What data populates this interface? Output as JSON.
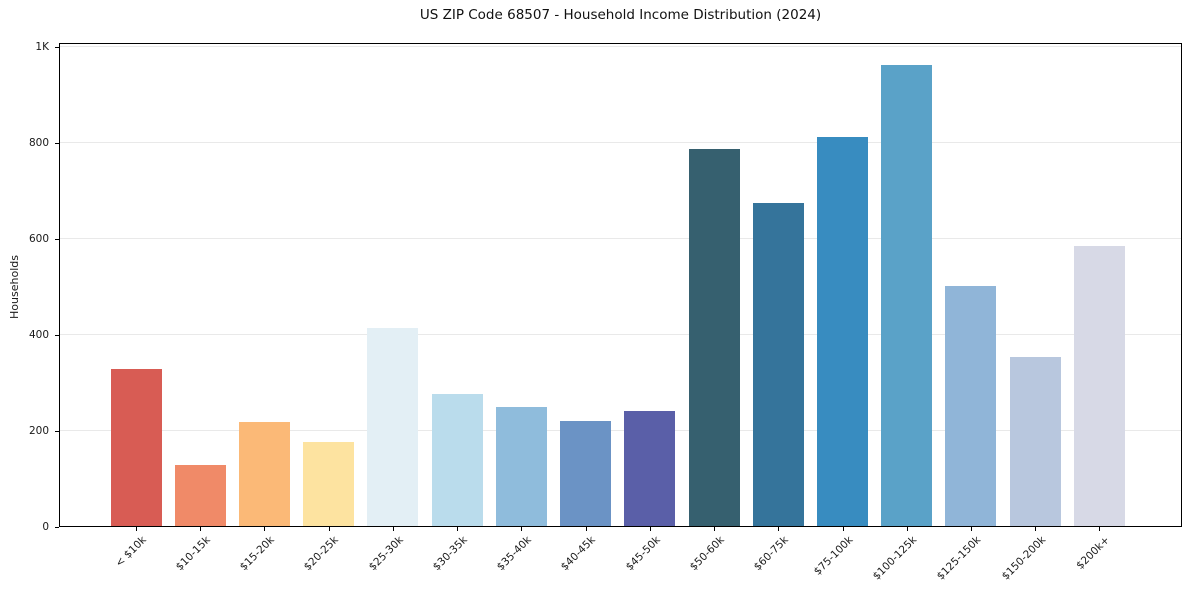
{
  "title": "US ZIP Code 68507 - Household Income Distribution (2024)",
  "chart_data": {
    "type": "bar",
    "title": "US ZIP Code 68507 - Household Income Distribution (2024)",
    "xlabel": "",
    "ylabel": "Households",
    "categories": [
      "< $10k",
      "$10-15k",
      "$15-20k",
      "$20-25k",
      "$25-30k",
      "$30-35k",
      "$35-40k",
      "$40-45k",
      "$45-50k",
      "$50-60k",
      "$60-75k",
      "$75-100k",
      "$100-125k",
      "$125-150k",
      "$150-200k",
      "$200k+"
    ],
    "values": [
      327,
      128,
      217,
      176,
      413,
      275,
      249,
      220,
      239,
      786,
      674,
      812,
      961,
      500,
      353,
      584
    ],
    "bar_colors": [
      "#d85c54",
      "#f08a68",
      "#fbb977",
      "#fde3a0",
      "#e3eff5",
      "#badcec",
      "#8fbcdc",
      "#6b93c5",
      "#5a5fa8",
      "#36606f",
      "#35749b",
      "#388cc0",
      "#5aa2c8",
      "#90b5d8",
      "#b8c7de",
      "#d7d9e6"
    ],
    "ylim": [
      0,
      1009
    ],
    "yticks": {
      "values": [
        0,
        200,
        400,
        600,
        800,
        1000
      ],
      "labels": [
        "0",
        "200",
        "400",
        "600",
        "800",
        "1K"
      ]
    },
    "grid": "horizontal",
    "legend": "none",
    "background_color": "#ffffff",
    "axis_color": "#000000",
    "grid_color": "#e9e9e9",
    "text_color": "#1a1a1a",
    "xtick_rotation_deg": 45
  }
}
